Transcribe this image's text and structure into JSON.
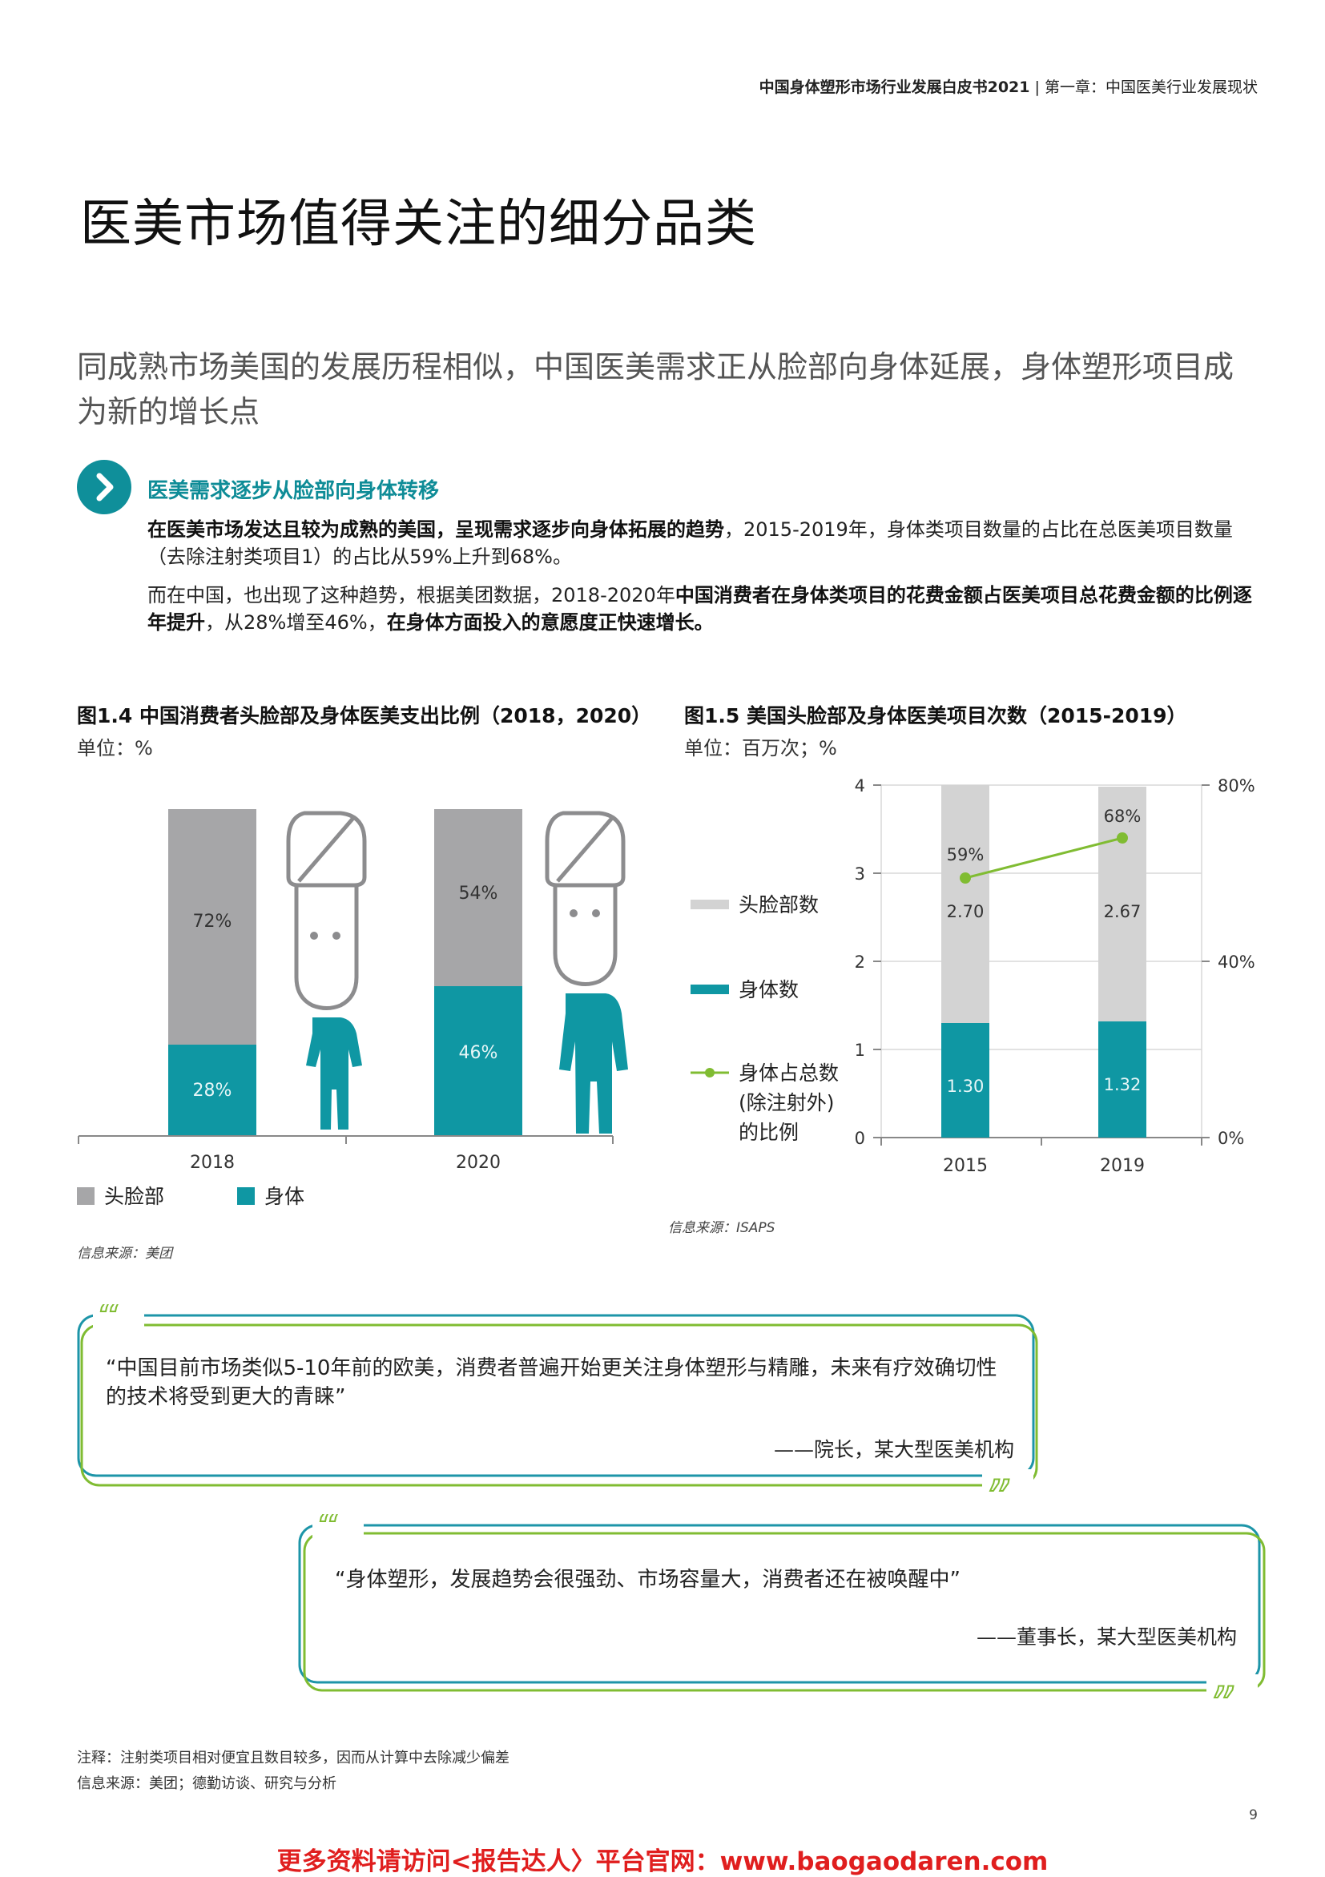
{
  "header": {
    "report_title": "中国身体塑形市场行业发展白皮书2021",
    "separator": " | ",
    "chapter": "第一章：中国医美行业发展现状"
  },
  "title": "医美市场值得关注的细分品类",
  "subtitle": "同成熟市场美国的发展历程相似，中国医美需求正从脸部向身体延展，身体塑形项目成为新的增长点",
  "section": {
    "title": "医美需求逐步从脸部向身体转移",
    "p1_bold": "在医美市场发达且较为成熟的美国，呈现需求逐步向身体拓展的趋势",
    "p1_rest": "，2015-2019年，身体类项目数量的占比在总医美项目数量（去除注射类项目1）的占比从59%上升到68%。",
    "p2_a": "而在中国，也出现了这种趋势，根据美团数据，2018-2020年",
    "p2_bold1": "中国消费者在身体类项目的花费金额占医美项目总花费金额的比例逐年提升",
    "p2_b": "，从28%增至46%，",
    "p2_bold2": "在身体方面投入的意愿度正快速增长。"
  },
  "fig14": {
    "title": "图1.4 中国消费者头脸部及身体医美支出比例（2018，2020）",
    "unit": "单位：%",
    "source": "信息来源：美团",
    "chart_data": {
      "type": "bar",
      "stacked": true,
      "categories": [
        "2018",
        "2020"
      ],
      "series": [
        {
          "name": "头脸部",
          "values": [
            72,
            54
          ],
          "labels": [
            "72%",
            "54%"
          ],
          "color": "#a6a6a8"
        },
        {
          "name": "身体",
          "values": [
            28,
            46
          ],
          "labels": [
            "28%",
            "46%"
          ],
          "color": "#0f97a3"
        }
      ],
      "legend": "bottom-left"
    }
  },
  "fig15": {
    "title": "图1.5 美国头脸部及身体医美项目次数（2015-2019）",
    "unit": "单位：百万次；%",
    "source": "信息来源：ISAPS",
    "chart_data": {
      "type": "bar",
      "stacked": true,
      "categories": [
        "2015",
        "2019"
      ],
      "y_ticks": [
        "0",
        "1",
        "2",
        "3",
        "4"
      ],
      "y2_ticks": [
        "0%",
        "40%",
        "80%"
      ],
      "ylim": [
        0,
        4
      ],
      "y2lim": [
        0,
        80
      ],
      "grid": true,
      "series": [
        {
          "name": "身体数",
          "values": [
            1.3,
            1.32
          ],
          "labels": [
            "1.30",
            "1.32"
          ],
          "color": "#0f97a3"
        },
        {
          "name": "头脸部数",
          "values": [
            2.7,
            2.67
          ],
          "labels": [
            "2.70",
            "2.67"
          ],
          "color": "#d3d3d3"
        },
        {
          "name": "身体占总数(除注射外)的比例",
          "type": "line",
          "axis": "right",
          "values": [
            59,
            68
          ],
          "labels": [
            "59%",
            "68%"
          ],
          "color": "#80bc32"
        }
      ],
      "legend_labels": {
        "face": "头脸部数",
        "body": "身体数",
        "ratio_line1": "身体占总数",
        "ratio_line2": "(除注射外)",
        "ratio_line3": "的比例"
      },
      "legend": "left"
    }
  },
  "quote1": {
    "text": "“中国目前市场类似5-10年前的欧美，消费者普遍开始更关注身体塑形与精雕，未来有疗效确切性的技术将受到更大的青睐”",
    "attr": "——院长，某大型医美机构"
  },
  "quote2": {
    "text": "“身体塑形，发展趋势会很强劲、市场容量大，消费者还在被唤醒中”",
    "attr": "——董事长，某大型医美机构"
  },
  "notes": {
    "note": "注释：注射类项目相对便宜且数目较多，因而从计算中去除减少偏差",
    "source": "信息来源：美团；德勤访谈、研究与分析"
  },
  "page_number": "9",
  "footer": "更多资料请访问<报告达人〉平台官网：www.baogaodaren.com",
  "colors": {
    "teal": "#0f97a3",
    "gray": "#a6a6a8",
    "light_gray": "#d3d3d3",
    "green": "#80bc32",
    "red": "#e01e1e"
  }
}
